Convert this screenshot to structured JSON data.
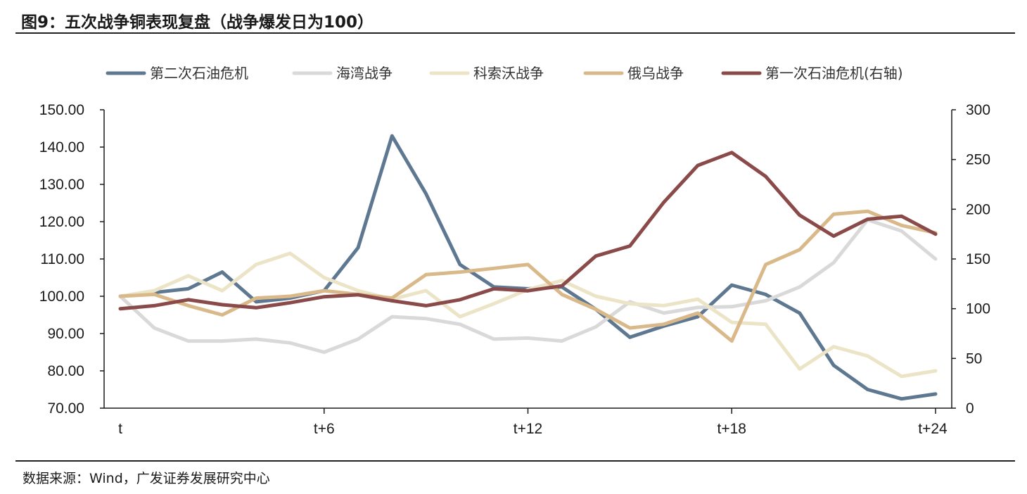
{
  "title": "图9：五次战争铜表现复盘（战争爆发日为100）",
  "source": "数据来源：Wind，广发证券发展研究中心",
  "chart_data": {
    "type": "line",
    "x": [
      "t",
      "t+1",
      "t+2",
      "t+3",
      "t+4",
      "t+5",
      "t+6",
      "t+7",
      "t+8",
      "t+9",
      "t+10",
      "t+11",
      "t+12",
      "t+13",
      "t+14",
      "t+15",
      "t+16",
      "t+17",
      "t+18",
      "t+19",
      "t+20",
      "t+21",
      "t+22",
      "t+23",
      "t+24"
    ],
    "x_tick_labels": [
      "t",
      "t+6",
      "t+12",
      "t+18",
      "t+24"
    ],
    "y_left": {
      "ticks": [
        "150.00",
        "140.00",
        "130.00",
        "120.00",
        "110.00",
        "100.00",
        "90.00",
        "80.00",
        "70.00"
      ],
      "ylim": [
        70,
        150
      ]
    },
    "y_right": {
      "ticks": [
        "300",
        "250",
        "200",
        "150",
        "100",
        "50",
        "0"
      ],
      "ylim": [
        0,
        300
      ]
    },
    "series": [
      {
        "name": "第二次石油危机",
        "axis": "left",
        "color": "#5f7891",
        "values": [
          100.0,
          101.0,
          102.0,
          106.5,
          98.5,
          99.5,
          101.5,
          113.0,
          143.0,
          127.5,
          108.5,
          102.5,
          102.0,
          102.5,
          96.5,
          89.0,
          92.0,
          94.5,
          103.0,
          100.5,
          95.5,
          81.5,
          75.0,
          72.5,
          73.8
        ]
      },
      {
        "name": "海湾战争",
        "axis": "left",
        "color": "#d9d9d9",
        "values": [
          100.0,
          91.5,
          88.0,
          88.0,
          88.5,
          87.5,
          85.0,
          88.5,
          94.5,
          94.0,
          92.5,
          88.5,
          88.8,
          88.0,
          91.8,
          98.5,
          95.5,
          97.0,
          97.2,
          98.8,
          102.5,
          109.0,
          120.5,
          117.5,
          110.0
        ]
      },
      {
        "name": "科索沃战争",
        "axis": "left",
        "color": "#ece4c6",
        "values": [
          100.0,
          101.5,
          105.5,
          101.5,
          108.5,
          111.5,
          105.0,
          101.5,
          99.2,
          101.5,
          94.5,
          98.0,
          101.8,
          104.2,
          100.0,
          98.0,
          97.5,
          99.2,
          93.0,
          92.5,
          80.5,
          86.5,
          84.0,
          78.5,
          80.0
        ]
      },
      {
        "name": "俄乌战争",
        "axis": "left",
        "color": "#d9b98a",
        "values": [
          100.0,
          100.5,
          97.5,
          95.0,
          99.5,
          100.0,
          101.5,
          100.5,
          99.5,
          105.8,
          106.5,
          107.5,
          108.5,
          100.5,
          96.5,
          91.5,
          92.5,
          95.5,
          88.0,
          108.5,
          112.5,
          122.0,
          122.8,
          119.0,
          117.0
        ]
      },
      {
        "name": "第一次石油危机(右轴)",
        "axis": "right",
        "color": "#8b4a4a",
        "values": [
          100,
          103,
          109,
          104,
          101,
          106,
          112,
          114,
          108,
          103,
          109,
          120,
          118,
          123,
          153,
          163,
          207,
          244,
          257,
          233,
          194,
          173,
          190,
          193,
          175
        ]
      }
    ]
  }
}
